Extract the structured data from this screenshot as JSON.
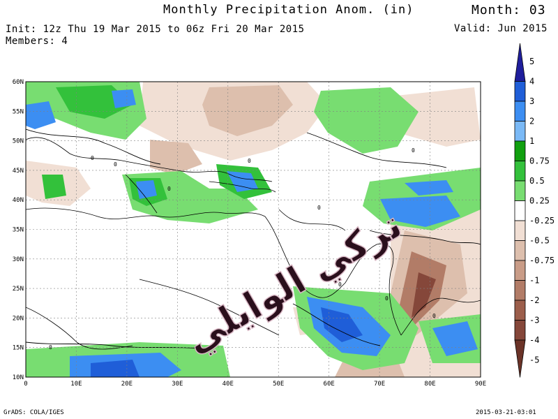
{
  "header": {
    "title": "Monthly Precipitation Anom. (in)",
    "month": "Month: 03",
    "init": "Init: 12z Thu 19 Mar 2015 to 06z Fri 20 Mar 2015",
    "members": "Members: 4",
    "valid": "Valid: Jun 2015"
  },
  "map": {
    "lat_labels": [
      "60N",
      "55N",
      "50N",
      "45N",
      "40N",
      "35N",
      "30N",
      "25N",
      "20N",
      "15N",
      "10N"
    ],
    "lon_labels": [
      "0",
      "10E",
      "20E",
      "30E",
      "40E",
      "50E",
      "60E",
      "70E",
      "80E",
      "90E"
    ],
    "extent": {
      "lon": [
        0,
        90
      ],
      "lat": [
        10,
        60
      ]
    },
    "contour_label": "0"
  },
  "colorbar": {
    "labels": [
      "5",
      "4",
      "3",
      "2",
      "1",
      "0.75",
      "0.5",
      "0.25",
      "-0.25",
      "-0.5",
      "-0.75",
      "-1",
      "-2",
      "-3",
      "-4",
      "-5"
    ],
    "colors": [
      "#1f1e9c",
      "#1f5ed8",
      "#3c8ef2",
      "#7ab9f6",
      "#11a00f",
      "#33c13b",
      "#78dd71",
      "#ffffff",
      "#f1dfd4",
      "#ddbfad",
      "#c99c87",
      "#b27c67",
      "#9c5e4b",
      "#85473a",
      "#6b3328"
    ]
  },
  "colors": {
    "wet_heavy": "#1f5ed8",
    "wet_med": "#3c8ef2",
    "wet_light": "#78dd71",
    "wet_green": "#33c13b",
    "dry_light": "#f1dfd4",
    "dry_med": "#ddbfad",
    "dry_strong": "#b27c67",
    "dry_heavy": "#85473a"
  },
  "watermark": {
    "text": "تركي الوايلي"
  },
  "footer": {
    "credit": "GrADS: COLA/IGES",
    "timestamp": "2015-03-21-03:01"
  }
}
